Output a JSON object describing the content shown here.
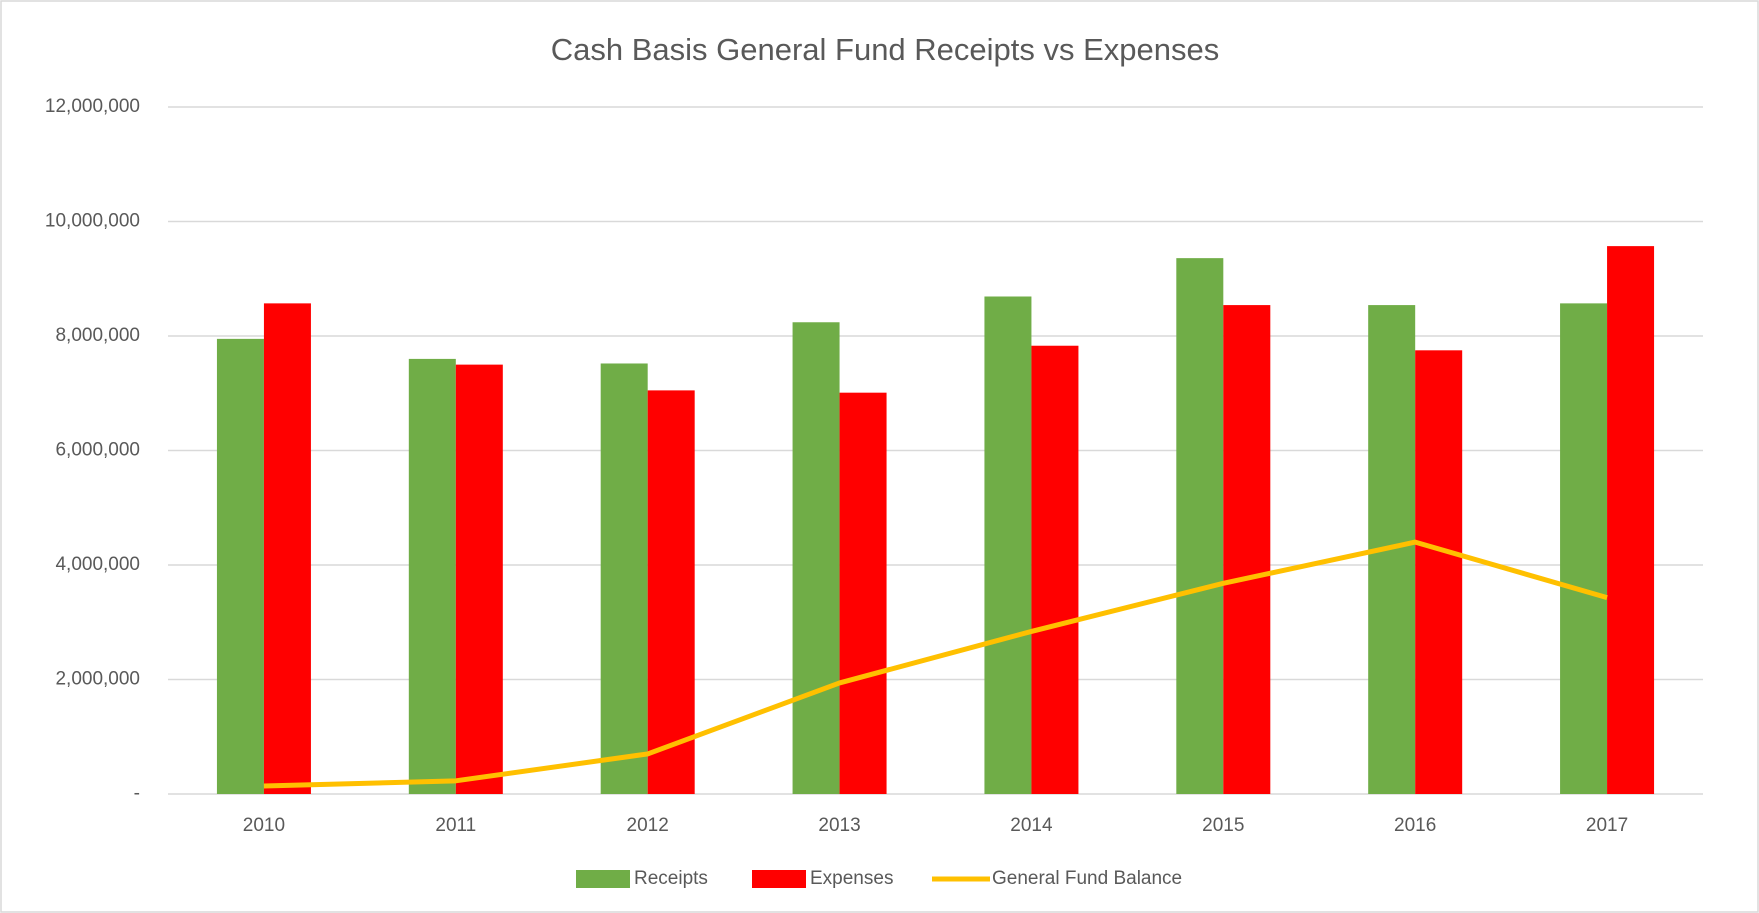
{
  "chart_data": {
    "type": "bar_line",
    "title": "Cash Basis General Fund Receipts vs Expenses",
    "categories": [
      "2010",
      "2011",
      "2012",
      "2013",
      "2014",
      "2015",
      "2016",
      "2017"
    ],
    "series": [
      {
        "name": "Receipts",
        "color": "#70ad47",
        "kind": "bar",
        "values": [
          7950000,
          7600000,
          7520000,
          8240000,
          8690000,
          9360000,
          8540000,
          8570000
        ]
      },
      {
        "name": "Expenses",
        "color": "#ff0000",
        "kind": "bar",
        "values": [
          8570000,
          7500000,
          7050000,
          7010000,
          7830000,
          8540000,
          7750000,
          9570000
        ]
      },
      {
        "name": "General Fund Balance",
        "color": "#ffc000",
        "kind": "line",
        "values": [
          140000,
          230000,
          700000,
          1940000,
          2840000,
          3680000,
          4400000,
          3430000
        ]
      }
    ],
    "ylim": [
      0,
      12000000
    ],
    "yticks": [
      {
        "value": 0,
        "label": "-"
      },
      {
        "value": 2000000,
        "label": "2,000,000"
      },
      {
        "value": 4000000,
        "label": "4,000,000"
      },
      {
        "value": 6000000,
        "label": "6,000,000"
      },
      {
        "value": 8000000,
        "label": "8,000,000"
      },
      {
        "value": 10000000,
        "label": "10,000,000"
      },
      {
        "value": 12000000,
        "label": "12,000,000"
      }
    ],
    "grid": true,
    "legend": "bottom"
  }
}
